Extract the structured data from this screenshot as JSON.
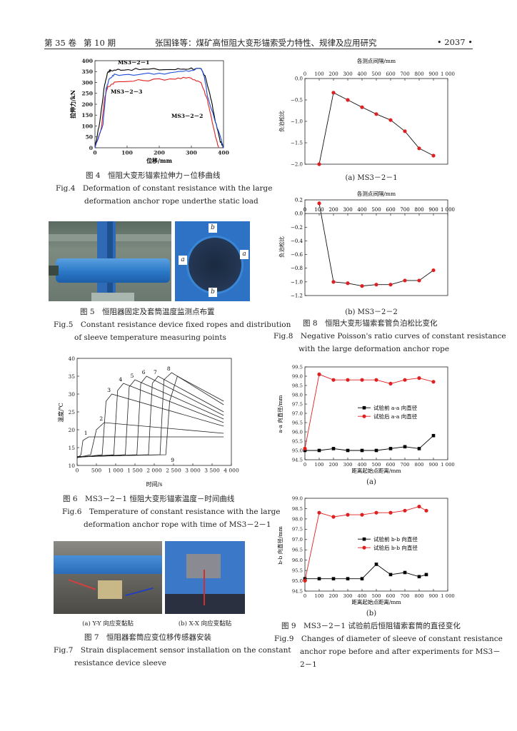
{
  "header": {
    "volume": "第 35 卷",
    "issue": "第 10 期",
    "title": "张国锋等：煤矿高恒阻大变形锚索受力特性、规律及应用研究",
    "page": "• 2037 •"
  },
  "fig4": {
    "caption_cn": "图 4　恒阻大变形锚索拉伸力－位移曲线",
    "caption_en_1": "Fig.4　Deformation of constant resistance with the large",
    "caption_en_2": "deformation anchor rope underthe static load",
    "chart_data": {
      "type": "line",
      "xlabel": "位移/mm",
      "ylabel": "拉伸力/kN",
      "xlim": [
        0,
        400
      ],
      "ylim": [
        0,
        400
      ],
      "xticks": [
        0,
        100,
        200,
        300,
        400
      ],
      "yticks": [
        0,
        50,
        100,
        150,
        200,
        250,
        300,
        350,
        400
      ],
      "series": [
        {
          "name": "MS3－2－1",
          "color": "#000000",
          "x": [
            0,
            15,
            30,
            40,
            50,
            80,
            150,
            250,
            300,
            330,
            345,
            360,
            375,
            390,
            400
          ],
          "y": [
            0,
            120,
            290,
            350,
            355,
            360,
            360,
            360,
            365,
            360,
            320,
            230,
            120,
            30,
            0
          ]
        },
        {
          "name": "MS3－2－2",
          "color": "#e02020",
          "x": [
            0,
            20,
            30,
            40,
            60,
            150,
            250,
            300,
            330,
            350,
            365,
            375,
            385
          ],
          "y": [
            0,
            90,
            230,
            280,
            300,
            310,
            318,
            320,
            300,
            220,
            120,
            50,
            0
          ]
        },
        {
          "name": "MS3－2－3",
          "color": "#1f4fd8",
          "x": [
            0,
            25,
            35,
            45,
            60,
            150,
            250,
            300,
            330,
            340,
            350,
            370,
            390,
            400
          ],
          "y": [
            0,
            110,
            270,
            320,
            335,
            338,
            345,
            355,
            365,
            330,
            240,
            140,
            50,
            0
          ]
        }
      ]
    }
  },
  "fig5": {
    "caption_cn": "图 5　恒阻器固定及套筒温度监测点布置",
    "caption_en_1": "Fig.5　Constant resistance device fixed ropes and distribution",
    "caption_en_2": "of sleeve temperature measuring points",
    "labels": [
      "b",
      "a",
      "a",
      "b"
    ]
  },
  "fig6": {
    "caption_cn": "图 6　MS3－2－1 恒阻大变形锚索温度－时间曲线",
    "caption_en_1": "Fig.6　Temperature of constant resistance with the large",
    "caption_en_2": "deformation anchor rope with time of MS3－2－1",
    "chart_data": {
      "type": "line",
      "xlabel": "时间/s",
      "ylabel": "温度/℃",
      "xlim": [
        0,
        4000
      ],
      "ylim": [
        10,
        40
      ],
      "xticks": [
        "0",
        "500",
        "1 000",
        "1 500",
        "2 000",
        "2 500",
        "3 000",
        "3 500",
        "4 000"
      ],
      "yticks": [
        10,
        15,
        20,
        25,
        30,
        35,
        40
      ],
      "series": [
        {
          "name": "1",
          "x": [
            0,
            100,
            150,
            300,
            3800
          ],
          "y": [
            12,
            13,
            17,
            18,
            18
          ]
        },
        {
          "name": "2",
          "x": [
            0,
            350,
            500,
            700,
            3800
          ],
          "y": [
            12.2,
            13,
            20,
            22,
            19
          ]
        },
        {
          "name": "3",
          "x": [
            0,
            650,
            750,
            900,
            3800
          ],
          "y": [
            12.2,
            13,
            28,
            30,
            21
          ]
        },
        {
          "name": "4",
          "x": [
            0,
            950,
            1050,
            1200,
            3800
          ],
          "y": [
            12.3,
            13,
            31,
            33,
            22
          ]
        },
        {
          "name": "5",
          "x": [
            0,
            1250,
            1350,
            1500,
            3800
          ],
          "y": [
            12.3,
            13,
            32,
            34,
            23
          ]
        },
        {
          "name": "6",
          "x": [
            0,
            1550,
            1650,
            1800,
            3800
          ],
          "y": [
            12.4,
            13,
            33,
            35,
            24
          ]
        },
        {
          "name": "7",
          "x": [
            0,
            1850,
            1950,
            2100,
            3800
          ],
          "y": [
            12.4,
            13,
            33,
            35,
            25
          ]
        },
        {
          "name": "8",
          "x": [
            0,
            2150,
            2250,
            2450,
            3800
          ],
          "y": [
            12.5,
            13,
            34,
            36,
            27
          ]
        },
        {
          "name": "9",
          "x": [
            0,
            2300,
            2400,
            2600,
            3800
          ],
          "y": [
            12.5,
            13,
            28,
            35,
            28
          ]
        }
      ]
    }
  },
  "fig7": {
    "sub_a": "(a) Y-Y 向应变黏贴",
    "sub_b": "(b) X-X 向应变黏贴",
    "caption_cn": "图 7　恒阻器套筒应变位移传感器安装",
    "caption_en_1": "Fig.7　Strain displacement sensor installation on the constant",
    "caption_en_2": "resistance device sleeve"
  },
  "fig8": {
    "caption_cn": "图 8　恒阻大变形锚索套管负泊松比变化",
    "caption_en_1": "Fig.8　Negative Poisson's ratio curves of constant resistance",
    "caption_en_2": "with the large deformation anchor rope",
    "sub_a": "(a) MS3－2－1",
    "sub_b": "(b) MS3－2－2",
    "chart_a": {
      "type": "line",
      "xlabel": "各测点间隔/mm",
      "ylabel": "负泊松比",
      "xlim": [
        0,
        1000
      ],
      "ylim": [
        -2.0,
        0.0
      ],
      "xticks": [
        "0",
        "100",
        "200",
        "300",
        "400",
        "500",
        "600",
        "700",
        "800",
        "900",
        "1 000"
      ],
      "yticks": [
        "0.0",
        "−0.5",
        "−1.0",
        "−1.5",
        "−2.0"
      ],
      "x": [
        100,
        200,
        300,
        400,
        500,
        600,
        700,
        800,
        900
      ],
      "y": [
        -2.0,
        -0.33,
        -0.5,
        -0.67,
        -0.83,
        -0.97,
        -1.23,
        -1.63,
        -1.8
      ]
    },
    "chart_b": {
      "type": "line",
      "xlabel": "各测点间隔/mm",
      "ylabel": "负泊松比",
      "xlim": [
        0,
        1000
      ],
      "ylim": [
        -1.2,
        0.2
      ],
      "xticks": [
        "0",
        "100",
        "200",
        "300",
        "400",
        "500",
        "600",
        "700",
        "800",
        "900",
        "1 000"
      ],
      "yticks": [
        "0.2",
        "0.0",
        "−0.2",
        "−0.4",
        "−0.6",
        "−0.8",
        "−1.0",
        "−1.2"
      ],
      "x": [
        100,
        200,
        300,
        400,
        500,
        600,
        700,
        800,
        900
      ],
      "y": [
        0.15,
        -1.0,
        -1.02,
        -1.06,
        -1.04,
        -1.04,
        -0.98,
        -0.98,
        -0.83
      ]
    }
  },
  "fig9": {
    "caption_cn": "图 9　MS3－2－1 试验前后恒阻锚索套筒的直径变化",
    "caption_en_1": "Fig.9　Changes of diameter of sleeve of constant resistance",
    "caption_en_2": "anchor rope before and after experiments for MS3－",
    "caption_en_3": "2－1",
    "sub_a": "(a)",
    "sub_b": "(b)",
    "chart_a": {
      "type": "line",
      "xlabel": "距离起始点距离/mm",
      "ylabel": "a-a 向直径/mm",
      "xlim": [
        0,
        1000
      ],
      "ylim": [
        94.5,
        99.5
      ],
      "xticks": [
        "0",
        "100",
        "200",
        "300",
        "400",
        "500",
        "600",
        "700",
        "800",
        "900",
        "1 000"
      ],
      "yticks": [
        "94.5",
        "95.0",
        "95.5",
        "96.0",
        "96.5",
        "97.0",
        "97.5",
        "98.0",
        "98.5",
        "99.0",
        "99.5"
      ],
      "series": [
        {
          "name": "试验前 a-a 向直径",
          "color": "#000000",
          "marker": "square",
          "x": [
            0,
            100,
            200,
            300,
            400,
            500,
            600,
            700,
            800,
            900
          ],
          "y": [
            95.0,
            95.0,
            95.1,
            95.0,
            95.0,
            95.0,
            95.1,
            95.2,
            95.1,
            95.8
          ]
        },
        {
          "name": "试验后 a-a 向直径",
          "color": "#e02020",
          "marker": "circle",
          "x": [
            0,
            100,
            200,
            300,
            400,
            500,
            600,
            700,
            800,
            900
          ],
          "y": [
            95.1,
            99.1,
            98.8,
            98.8,
            98.8,
            98.8,
            98.6,
            98.8,
            98.9,
            98.7
          ]
        }
      ]
    },
    "chart_b": {
      "type": "line",
      "xlabel": "距离起始点距离/mm",
      "ylabel": "b-b 向直径/mm",
      "xlim": [
        0,
        1000
      ],
      "ylim": [
        94.5,
        99.0
      ],
      "xticks": [
        "0",
        "100",
        "200",
        "300",
        "400",
        "500",
        "600",
        "700",
        "800",
        "900",
        "1 000"
      ],
      "yticks": [
        "94.5",
        "95.0",
        "95.5",
        "96.0",
        "96.5",
        "97.0",
        "97.5",
        "98.0",
        "98.5",
        "99.0"
      ],
      "series": [
        {
          "name": "试验前 b-b 向直径",
          "color": "#000000",
          "marker": "square",
          "x": [
            0,
            100,
            200,
            300,
            400,
            500,
            600,
            700,
            800,
            850
          ],
          "y": [
            95.1,
            95.1,
            95.1,
            95.1,
            95.1,
            95.8,
            95.3,
            95.4,
            95.2,
            95.3
          ]
        },
        {
          "name": "试验后 b-b 向直径",
          "color": "#e02020",
          "marker": "circle",
          "x": [
            0,
            100,
            200,
            300,
            400,
            500,
            600,
            700,
            800,
            850
          ],
          "y": [
            95.0,
            98.3,
            98.1,
            98.2,
            98.2,
            98.3,
            98.3,
            98.4,
            98.6,
            98.4
          ]
        }
      ]
    }
  }
}
